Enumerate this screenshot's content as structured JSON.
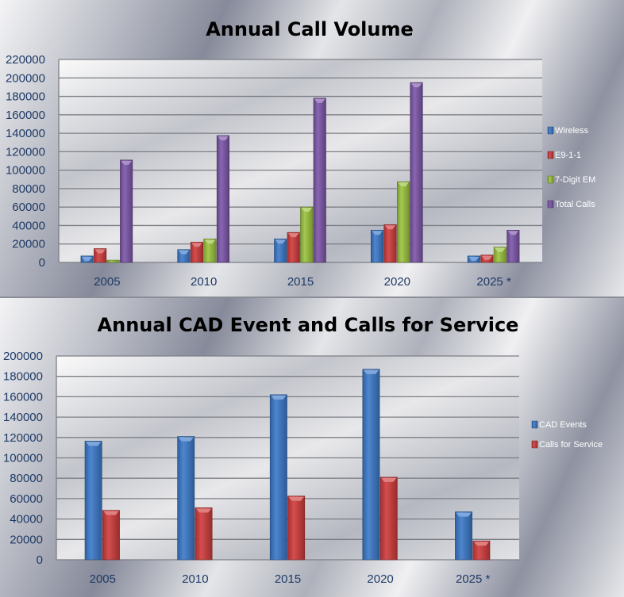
{
  "chart_data": [
    {
      "type": "bar",
      "title": "Annual Call Volume",
      "categories": [
        "2005",
        "2010",
        "2015",
        "2020",
        "2025 *"
      ],
      "ylim": [
        0,
        220000
      ],
      "yticks": [
        0,
        20000,
        40000,
        60000,
        80000,
        100000,
        120000,
        140000,
        160000,
        180000,
        200000,
        220000
      ],
      "grid": true,
      "legend_position": "right",
      "series": [
        {
          "name": "Wireless",
          "color": "#3a78c8",
          "values": [
            7000,
            14000,
            25500,
            35000,
            7000
          ]
        },
        {
          "name": "E9-1-1",
          "color": "#cf3a3a",
          "values": [
            15000,
            22000,
            32500,
            41000,
            8000
          ]
        },
        {
          "name": "7-Digit EM",
          "color": "#9ac23c",
          "values": [
            2500,
            25500,
            60000,
            87500,
            16500
          ]
        },
        {
          "name": "Total Calls",
          "color": "#7c55a8",
          "values": [
            111000,
            137500,
            178000,
            195000,
            35000
          ]
        }
      ]
    },
    {
      "type": "bar",
      "title": "Annual CAD Event and Calls for Service",
      "categories": [
        "2005",
        "2010",
        "2015",
        "2020",
        "2025 *"
      ],
      "ylim": [
        0,
        200000
      ],
      "yticks": [
        0,
        20000,
        40000,
        60000,
        80000,
        100000,
        120000,
        140000,
        160000,
        180000,
        200000
      ],
      "grid": true,
      "legend_position": "right",
      "series": [
        {
          "name": "CAD Events",
          "color": "#3a78c8",
          "values": [
            116500,
            121000,
            162000,
            187000,
            47000
          ]
        },
        {
          "name": "Calls for Service",
          "color": "#cf3a3a",
          "values": [
            48500,
            51000,
            62500,
            81000,
            18500
          ]
        }
      ]
    }
  ]
}
